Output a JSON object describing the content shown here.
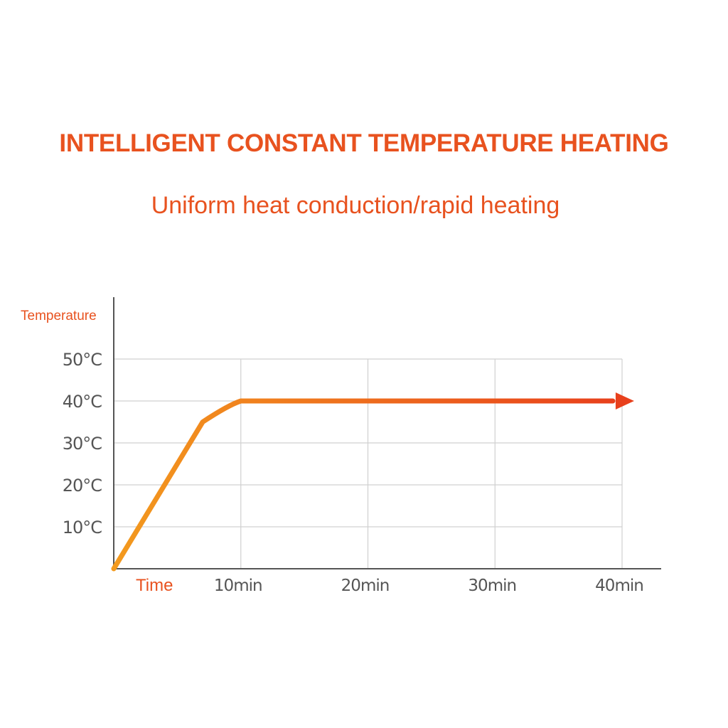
{
  "title": "INTELLIGENT CONSTANT TEMPERATURE HEATING",
  "subtitle": "Uniform heat conduction/rapid heating",
  "colors": {
    "accent": "#e8521f",
    "line_start": "#f39a1e",
    "line_end": "#e8401c",
    "grid": "#d0d0d0",
    "axis": "#555555"
  },
  "chart_data": {
    "type": "line",
    "xlabel": "Time",
    "ylabel": "Temperature",
    "x_unit": "min",
    "y_unit": "°C",
    "xlim": [
      0,
      40
    ],
    "ylim": [
      0,
      50
    ],
    "x_ticks": [
      10,
      20,
      30,
      40
    ],
    "y_ticks": [
      10,
      20,
      30,
      40,
      50
    ],
    "x_tick_labels": [
      "10min",
      "20min",
      "30min",
      "40min"
    ],
    "y_tick_labels": [
      "10°C",
      "20°C",
      "30°C",
      "40°C",
      "50°C"
    ],
    "grid": true,
    "arrow_at_end": true,
    "series": [
      {
        "x": [
          0,
          7,
          9,
          10,
          40.5
        ],
        "y": [
          0,
          35,
          39,
          40,
          40
        ]
      }
    ]
  }
}
